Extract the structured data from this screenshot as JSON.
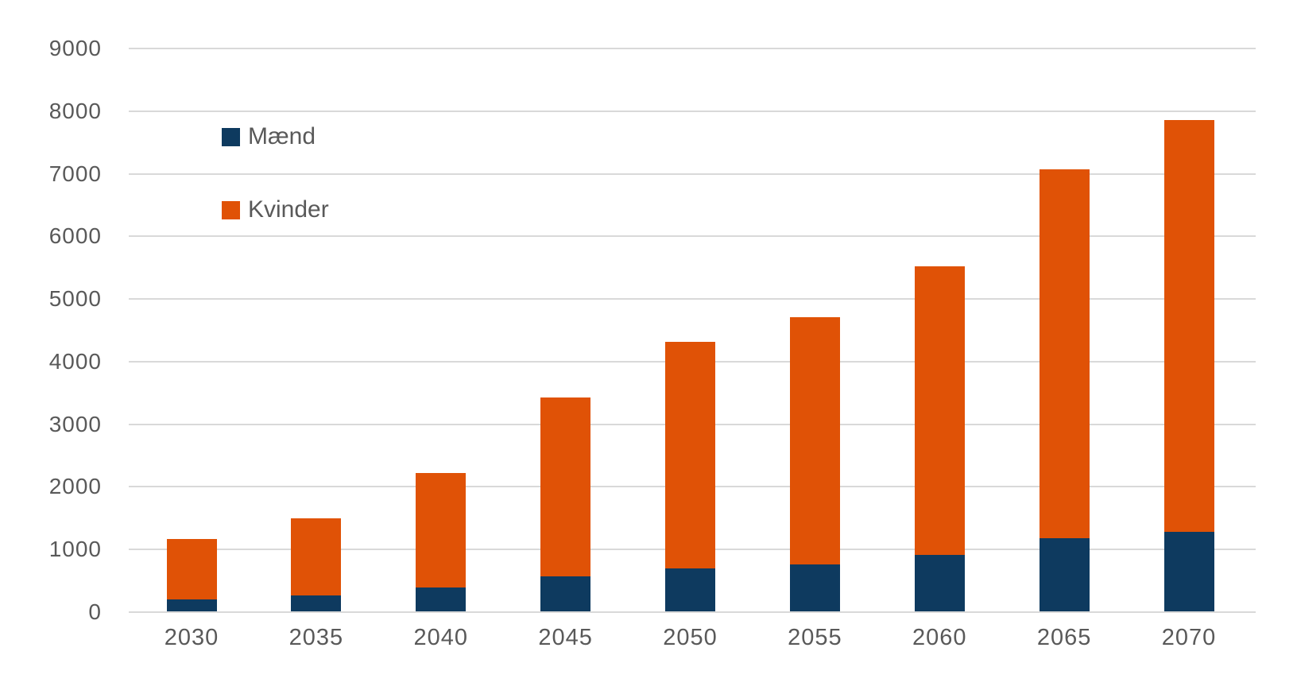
{
  "colors": {
    "maend": "#0E3A5F",
    "kvinder": "#E05206",
    "gridline": "#D9D9D9",
    "tick_text": "#595959",
    "background": "#FFFFFF"
  },
  "legend": {
    "items": [
      {
        "label": "Mænd"
      },
      {
        "label": "Kvinder"
      }
    ]
  },
  "chart_data": {
    "type": "bar",
    "stacked": true,
    "title": "",
    "xlabel": "",
    "ylabel": "",
    "categories": [
      "2030",
      "2035",
      "2040",
      "2045",
      "2050",
      "2055",
      "2060",
      "2065",
      "2070"
    ],
    "series": [
      {
        "name": "Mænd",
        "color": "#0E3A5F",
        "values": [
          190,
          250,
          375,
          560,
          690,
          750,
          900,
          1170,
          1270
        ]
      },
      {
        "name": "Kvinder",
        "color": "#E05206",
        "values": [
          960,
          1230,
          1835,
          2860,
          3610,
          3945,
          4610,
          5890,
          6580
        ]
      }
    ],
    "totals": [
      1150,
      1480,
      2210,
      3420,
      4300,
      4695,
      5510,
      7060,
      7850
    ],
    "ylim": [
      0,
      9000
    ],
    "ytick_step": 1000,
    "grid": true,
    "legend_position": "upper-left-inside"
  }
}
